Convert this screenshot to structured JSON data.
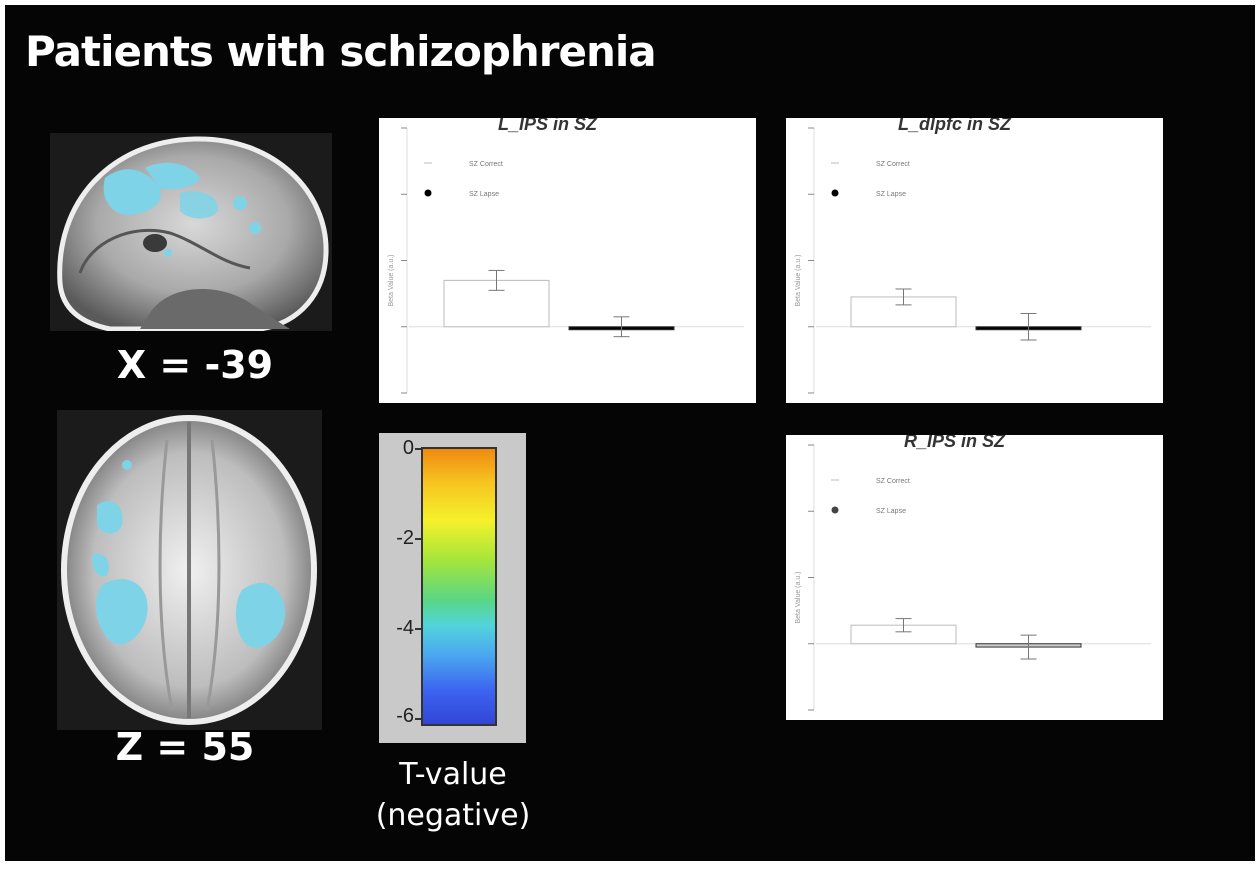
{
  "figure": {
    "title": "Patients with schizophrenia",
    "sagittal_label": "X = -39",
    "axial_label": "Z = 55",
    "colorbar": {
      "label_line1": "T-value",
      "label_line2": "(negative)",
      "ticks": [
        "0",
        "-2",
        "-4",
        "-6"
      ],
      "range": [
        -6,
        0
      ],
      "colormap_colors": [
        "#f08a10",
        "#f4f12a",
        "#58d685",
        "#4aa7f0",
        "#3246d6"
      ]
    },
    "activation_color": "#7fd3e6"
  },
  "chart_data": [
    {
      "type": "bar",
      "title": "L_IPS in SZ",
      "ylabel": "Beta Value (a.u.)",
      "legend": [
        "SZ Correct",
        "SZ Lapse"
      ],
      "legend_position": "top-left",
      "categories": [
        "SZ Correct",
        "SZ Lapse"
      ],
      "values": [
        0.7,
        0.0
      ],
      "errors": [
        0.15,
        0.15
      ],
      "ylim": [
        -1,
        3
      ],
      "bar_fill": [
        "#ffffff",
        "#000000"
      ]
    },
    {
      "type": "bar",
      "title": "L_dlpfc in SZ",
      "ylabel": "Beta Value (a.u.)",
      "legend": [
        "SZ Correct",
        "SZ Lapse"
      ],
      "legend_position": "top-left",
      "categories": [
        "SZ Correct",
        "SZ Lapse"
      ],
      "values": [
        0.45,
        0.0
      ],
      "errors": [
        0.12,
        0.2
      ],
      "ylim": [
        -1,
        3
      ],
      "bar_fill": [
        "#ffffff",
        "#000000"
      ]
    },
    {
      "type": "bar",
      "title": "R_IPS in SZ",
      "ylabel": "Beta Value (a.u.)",
      "legend": [
        "SZ Correct",
        "SZ Lapse"
      ],
      "legend_position": "top-left",
      "categories": [
        "SZ Correct",
        "SZ Lapse"
      ],
      "values": [
        0.28,
        -0.05
      ],
      "errors": [
        0.1,
        0.18
      ],
      "ylim": [
        -1,
        3
      ],
      "bar_fill": [
        "#ffffff",
        "#cccccc"
      ]
    }
  ]
}
